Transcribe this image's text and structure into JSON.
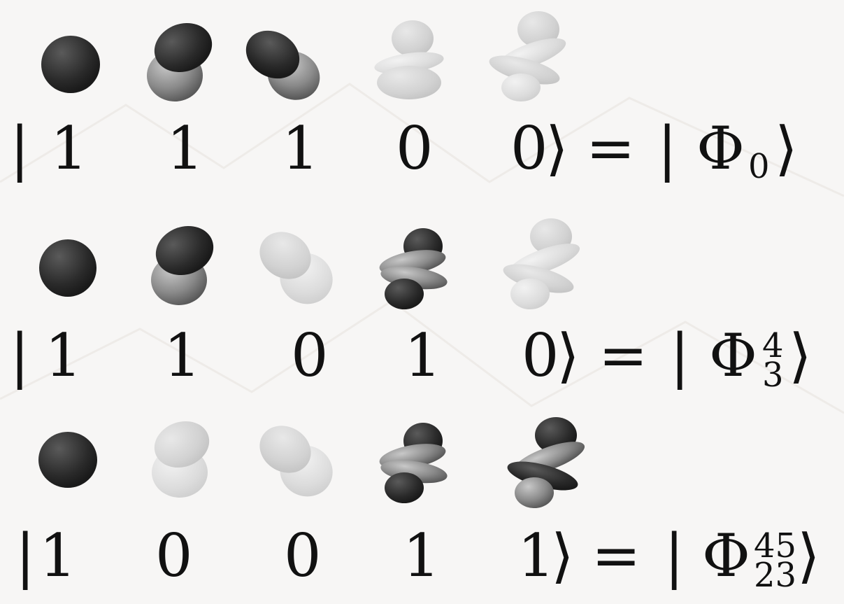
{
  "rows": [
    {
      "occupations": [
        "1",
        "1",
        "1",
        "0",
        "0"
      ],
      "state_sub": "0",
      "state_sup": "",
      "orbital_shades": [
        "dark",
        "dark",
        "dark",
        "light",
        "light"
      ]
    },
    {
      "occupations": [
        "1",
        "1",
        "0",
        "1",
        "0"
      ],
      "state_sub": "3",
      "state_sup": "4",
      "orbital_shades": [
        "dark",
        "dark",
        "light",
        "dark",
        "light"
      ]
    },
    {
      "occupations": [
        "1",
        "0",
        "0",
        "1",
        "1"
      ],
      "state_sub": "23",
      "state_sup": "45",
      "orbital_shades": [
        "dark",
        "light",
        "light",
        "dark",
        "dark"
      ]
    }
  ],
  "symbols": {
    "bra_open": "|",
    "ket_close": "⟩",
    "equals": "=",
    "phi": "Φ"
  },
  "orbital_types": [
    "s-orbital-icon",
    "p-orbital-icon",
    "p-orbital-icon",
    "d-orbital-icon",
    "d-orbital-icon"
  ]
}
